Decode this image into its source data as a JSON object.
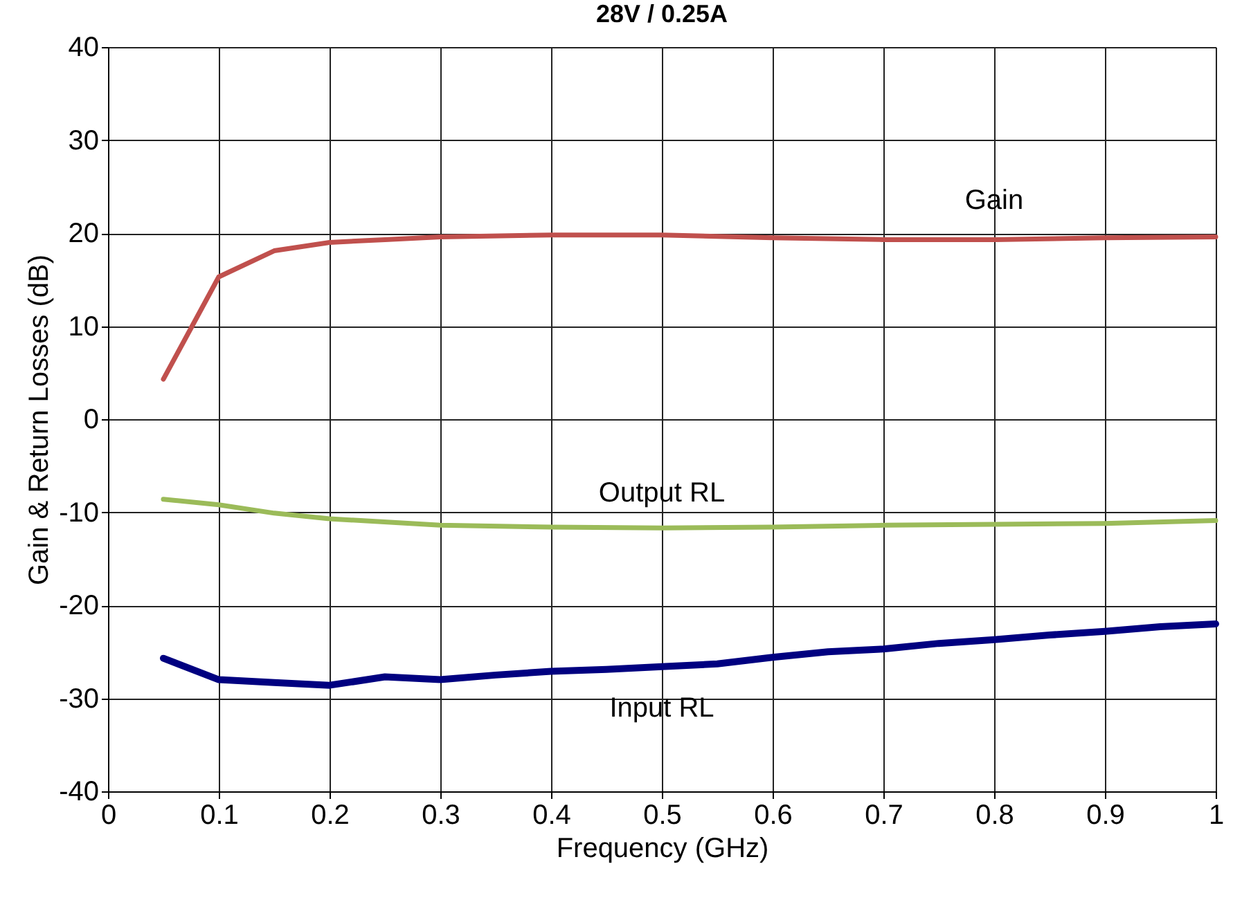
{
  "chart_data": {
    "type": "line",
    "title": "28V / 0.25A",
    "xlabel": "Frequency (GHz)",
    "ylabel": "Gain & Return Losses (dB)",
    "xlim": [
      0,
      1
    ],
    "xticks": [
      0,
      0.1,
      0.2,
      0.3,
      0.4,
      0.5,
      0.6,
      0.7,
      0.8,
      0.9,
      1
    ],
    "ylim": [
      -40,
      40
    ],
    "yticks": [
      -40,
      -30,
      -20,
      -10,
      0,
      10,
      20,
      30,
      40
    ],
    "grid": true,
    "marker": "none",
    "line_style": "solid",
    "series": [
      {
        "name": "Gain",
        "color": "#c0504d",
        "x": [
          0.05,
          0.1,
          0.15,
          0.2,
          0.25,
          0.3,
          0.4,
          0.5,
          0.6,
          0.7,
          0.8,
          0.9,
          1.0
        ],
        "values": [
          4.3,
          15.3,
          18.1,
          19.0,
          19.3,
          19.6,
          19.8,
          19.8,
          19.5,
          19.3,
          19.3,
          19.5,
          19.6
        ]
      },
      {
        "name": "Output RL",
        "color": "#9bbb59",
        "x": [
          0.05,
          0.1,
          0.15,
          0.2,
          0.3,
          0.4,
          0.5,
          0.6,
          0.7,
          0.8,
          0.9,
          1.0
        ],
        "values": [
          -8.6,
          -9.2,
          -10.1,
          -10.7,
          -11.4,
          -11.6,
          -11.7,
          -11.6,
          -11.4,
          -11.3,
          -11.2,
          -10.9
        ]
      },
      {
        "name": "Input RL",
        "color": "#000080",
        "x": [
          0.05,
          0.1,
          0.15,
          0.2,
          0.25,
          0.3,
          0.35,
          0.4,
          0.45,
          0.5,
          0.55,
          0.6,
          0.65,
          0.7,
          0.75,
          0.8,
          0.85,
          0.9,
          0.95,
          1.0
        ],
        "values": [
          -25.7,
          -28.0,
          -28.3,
          -28.6,
          -27.7,
          -28.0,
          -27.5,
          -27.1,
          -26.9,
          -26.6,
          -26.3,
          -25.6,
          -25.0,
          -24.7,
          -24.1,
          -23.7,
          -23.2,
          -22.8,
          -22.3,
          -22.0
        ]
      }
    ]
  }
}
